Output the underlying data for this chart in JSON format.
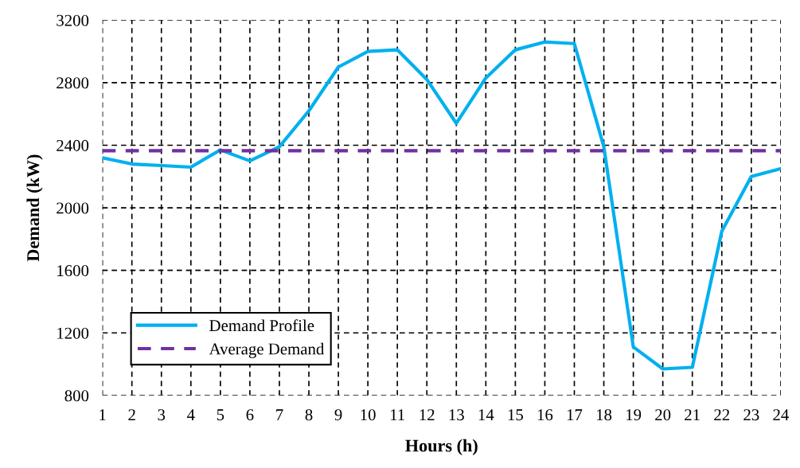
{
  "chart_data": {
    "type": "line",
    "xlabel": "Hours (h)",
    "ylabel": "Demand (kW)",
    "categories": [
      "1",
      "2",
      "3",
      "4",
      "5",
      "6",
      "7",
      "8",
      "9",
      "10",
      "11",
      "12",
      "13",
      "14",
      "15",
      "16",
      "17",
      "18",
      "19",
      "20",
      "21",
      "22",
      "23",
      "24"
    ],
    "series": [
      {
        "name": "Demand Profile",
        "color": "#00b0f0",
        "line_style": "solid",
        "values": [
          2320,
          2280,
          2270,
          2260,
          2370,
          2300,
          2390,
          2620,
          2900,
          3000,
          3010,
          2820,
          2540,
          2830,
          3010,
          3060,
          3050,
          2390,
          1110,
          970,
          980,
          1850,
          2200,
          2250
        ]
      },
      {
        "name": "Average Demand",
        "color": "#7030a0",
        "line_style": "dashed",
        "values": [
          2365,
          2365,
          2365,
          2365,
          2365,
          2365,
          2365,
          2365,
          2365,
          2365,
          2365,
          2365,
          2365,
          2365,
          2365,
          2365,
          2365,
          2365,
          2365,
          2365,
          2365,
          2365,
          2365,
          2365
        ]
      }
    ],
    "ylim": [
      800,
      3200
    ],
    "yticks": [
      800,
      1200,
      1600,
      2000,
      2400,
      2800,
      3200
    ],
    "grid": true,
    "legend": "bottom left",
    "marker": "none"
  }
}
